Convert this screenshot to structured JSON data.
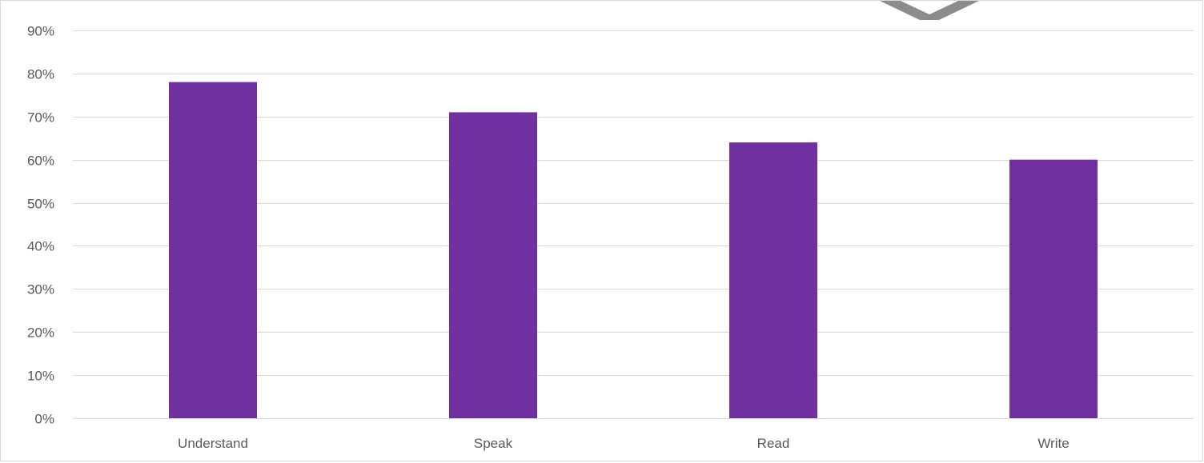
{
  "chart_data": {
    "type": "bar",
    "title": "",
    "xlabel": "",
    "ylabel": "",
    "categories": [
      "Understand",
      "Speak",
      "Read",
      "Write"
    ],
    "values": [
      78,
      71,
      64,
      60
    ],
    "value_unit": "%",
    "ylim": [
      0,
      90
    ],
    "y_ticks": [
      0,
      10,
      20,
      30,
      40,
      50,
      60,
      70,
      80,
      90
    ],
    "y_tick_labels": [
      "0%",
      "10%",
      "20%",
      "30%",
      "40%",
      "50%",
      "60%",
      "70%",
      "80%",
      "90%"
    ],
    "grid": true,
    "legend": "none",
    "colors": {
      "bar": "#7030a0",
      "gridline": "#d9d9d9",
      "tick_text": "#595959",
      "watermark": "#8c8c8c"
    }
  }
}
